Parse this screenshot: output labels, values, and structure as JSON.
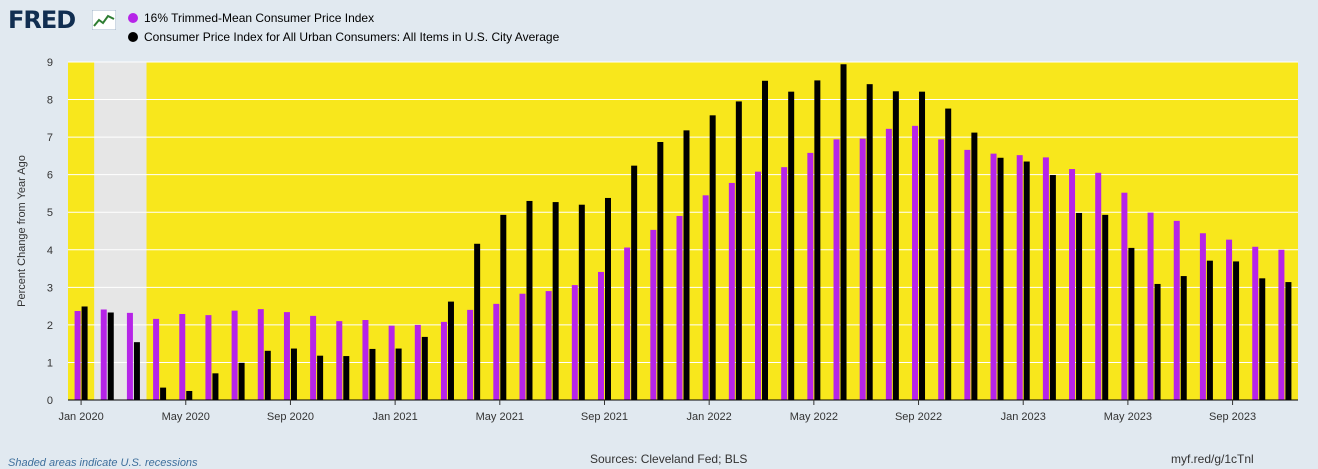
{
  "header": {
    "logo_text": "FRED",
    "logo_icon": "fred-chart-logo-icon"
  },
  "footer": {
    "recession_note": "Shaded areas indicate U.S. recessions",
    "sources": "Sources: Cleveland Fed; BLS",
    "short_link": "myf.red/g/1cTnl"
  },
  "colors": {
    "background": "#e1e9f0",
    "plot_background": "#f8e71c",
    "recession_shade": "#e6e6e6",
    "series_1": "#b624e8",
    "series_2": "#000000",
    "gridline": "#ffffff"
  },
  "chart_data": {
    "type": "bar",
    "title": "",
    "xlabel": "",
    "ylabel": "Percent Change from Year Ago",
    "ylim": [
      0,
      9
    ],
    "yticks": [
      0,
      1,
      2,
      3,
      4,
      5,
      6,
      7,
      8,
      9
    ],
    "grid": true,
    "legend_position": "top-left",
    "recession_shading": {
      "start_index": 1,
      "end_index": 3
    },
    "x_tick_labels": [
      {
        "index": 0,
        "label": "Jan 2020"
      },
      {
        "index": 4,
        "label": "May 2020"
      },
      {
        "index": 8,
        "label": "Sep 2020"
      },
      {
        "index": 12,
        "label": "Jan 2021"
      },
      {
        "index": 16,
        "label": "May 2021"
      },
      {
        "index": 20,
        "label": "Sep 2021"
      },
      {
        "index": 24,
        "label": "Jan 2022"
      },
      {
        "index": 28,
        "label": "May 2022"
      },
      {
        "index": 32,
        "label": "Sep 2022"
      },
      {
        "index": 36,
        "label": "Jan 2023"
      },
      {
        "index": 40,
        "label": "May 2023"
      },
      {
        "index": 44,
        "label": "Sep 2023"
      }
    ],
    "categories": [
      "Jan 2020",
      "Feb 2020",
      "Mar 2020",
      "Apr 2020",
      "May 2020",
      "Jun 2020",
      "Jul 2020",
      "Aug 2020",
      "Sep 2020",
      "Oct 2020",
      "Nov 2020",
      "Dec 2020",
      "Jan 2021",
      "Feb 2021",
      "Mar 2021",
      "Apr 2021",
      "May 2021",
      "Jun 2021",
      "Jul 2021",
      "Aug 2021",
      "Sep 2021",
      "Oct 2021",
      "Nov 2021",
      "Dec 2021",
      "Jan 2022",
      "Feb 2022",
      "Mar 2022",
      "Apr 2022",
      "May 2022",
      "Jun 2022",
      "Jul 2022",
      "Aug 2022",
      "Sep 2022",
      "Oct 2022",
      "Nov 2022",
      "Dec 2022",
      "Jan 2023",
      "Feb 2023",
      "Mar 2023",
      "Apr 2023",
      "May 2023",
      "Jun 2023",
      "Jul 2023",
      "Aug 2023",
      "Sep 2023",
      "Oct 2023",
      "Nov 2023"
    ],
    "series": [
      {
        "name": "16% Trimmed-Mean Consumer Price Index",
        "color": "#b624e8",
        "values": [
          2.37,
          2.41,
          2.32,
          2.16,
          2.29,
          2.26,
          2.38,
          2.42,
          2.34,
          2.24,
          2.1,
          2.13,
          1.98,
          2.0,
          2.08,
          2.4,
          2.56,
          2.83,
          2.9,
          3.06,
          3.41,
          4.06,
          4.53,
          4.9,
          5.45,
          5.78,
          6.08,
          6.2,
          6.58,
          6.94,
          6.96,
          7.22,
          7.3,
          6.94,
          6.66,
          6.56,
          6.52,
          6.46,
          6.15,
          6.05,
          5.52,
          4.99,
          4.77,
          4.44,
          4.27,
          4.08,
          4.0
        ]
      },
      {
        "name": "Consumer Price Index for All Urban Consumers: All Items in U.S. City Average",
        "color": "#000000",
        "values": [
          2.49,
          2.33,
          1.54,
          0.33,
          0.24,
          0.71,
          0.99,
          1.31,
          1.37,
          1.18,
          1.17,
          1.36,
          1.37,
          1.68,
          2.62,
          4.16,
          4.93,
          5.3,
          5.27,
          5.2,
          5.38,
          6.24,
          6.87,
          7.18,
          7.58,
          7.95,
          8.5,
          8.21,
          8.51,
          8.94,
          8.41,
          8.22,
          8.21,
          7.76,
          7.12,
          6.45,
          6.35,
          5.99,
          4.98,
          4.93,
          4.05,
          3.09,
          3.3,
          3.71,
          3.69,
          3.24,
          3.14
        ]
      }
    ]
  }
}
